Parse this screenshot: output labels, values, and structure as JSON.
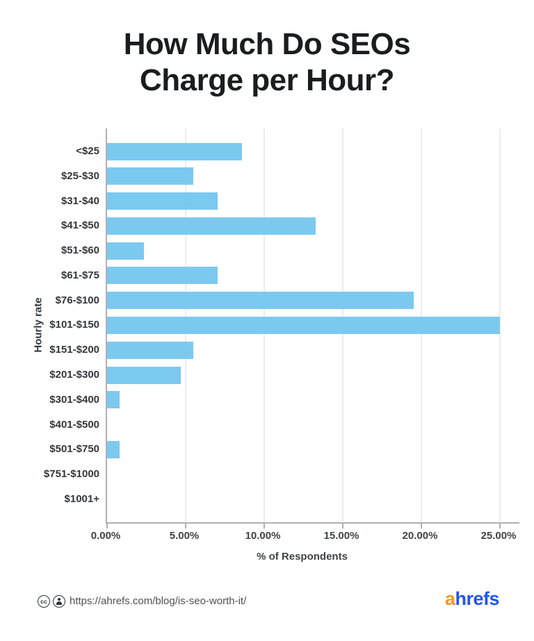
{
  "title": "How Much Do SEOs\nCharge per Hour?",
  "chart_data": {
    "type": "bar",
    "orientation": "horizontal",
    "title": "How Much Do SEOs Charge per Hour?",
    "categories": [
      "<$25",
      "$25-$30",
      "$31-$40",
      "$41-$50",
      "$51-$60",
      "$61-$75",
      "$76-$100",
      "$101-$150",
      "$151-$200",
      "$201-$300",
      "$301-$400",
      "$401-$500",
      "$501-$750",
      "$751-$1000",
      "$1001+"
    ],
    "values": [
      8.59,
      5.47,
      7.03,
      13.28,
      2.34,
      7.03,
      19.53,
      25.0,
      5.47,
      4.69,
      0.78,
      0,
      0.78,
      0,
      0
    ],
    "xlabel": "% of Respondents",
    "ylabel": "Hourly rate",
    "xlim": [
      0,
      25
    ],
    "x_ticks": [
      {
        "value": 0,
        "label": "0.00%"
      },
      {
        "value": 5,
        "label": "5.00%"
      },
      {
        "value": 10,
        "label": "10.00%"
      },
      {
        "value": 15,
        "label": "15.00%"
      },
      {
        "value": 20,
        "label": "20.00%"
      },
      {
        "value": 25,
        "label": "25.00%"
      }
    ],
    "grid": "vertical-only",
    "legend": "none",
    "bar_color": "#7CC9F0"
  },
  "footer": {
    "license": {
      "cc_icon_label": "cc",
      "icons": [
        "cc-icon",
        "attribution-icon"
      ]
    },
    "source_url": "https://ahrefs.com/blog/is-seo-worth-it/",
    "logo": {
      "part_orange": "a",
      "part_blue": "hrefs",
      "orange": "#F7941E",
      "blue": "#2155E8"
    }
  },
  "colors": {
    "background": "#ffffff",
    "bar": "#7CC9F0",
    "axis_line": "#b0b1b3",
    "gridline": "#ececec",
    "title_text": "#1b1c1e",
    "label_text": "#33373c",
    "url_text": "#4b5158"
  }
}
